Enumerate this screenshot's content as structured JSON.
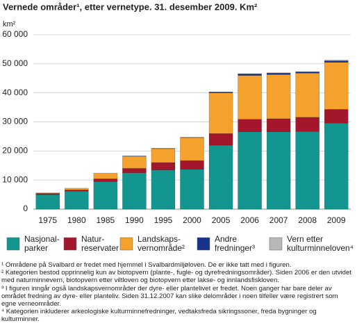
{
  "chart_data": {
    "type": "stacked-bar",
    "title": "Vernede områder¹, etter vernetype. 31. desember 2009. Km²",
    "unit_label": "km²",
    "categories": [
      "1975",
      "1980",
      "1985",
      "1990",
      "1995",
      "2000",
      "2005",
      "2006",
      "2007",
      "2008",
      "2009"
    ],
    "series": [
      {
        "name": "Nasjonal-\nparker",
        "color": "#12968f",
        "values": [
          5000,
          6200,
          9500,
          12500,
          13500,
          13700,
          22000,
          26600,
          26600,
          26700,
          29600
        ]
      },
      {
        "name": "Natur-\nreservater",
        "color": "#a3162b",
        "values": [
          400,
          400,
          900,
          1500,
          2500,
          3000,
          4000,
          4300,
          4500,
          4900,
          4700
        ]
      },
      {
        "name": "Landskaps-\nvernområde²",
        "color": "#f4a12d",
        "values": [
          200,
          600,
          2000,
          4200,
          4800,
          7900,
          14000,
          15100,
          15200,
          15200,
          16200
        ]
      },
      {
        "name": "Andre\nfredninger³",
        "color": "#17338a",
        "values": [
          0,
          0,
          0,
          100,
          100,
          100,
          300,
          500,
          500,
          400,
          500
        ]
      },
      {
        "name": "Vern etter\nkulturminneloven⁴",
        "color": "#b8b8b8",
        "values": [
          0,
          0,
          0,
          0,
          0,
          0,
          0,
          100,
          100,
          100,
          300
        ]
      }
    ],
    "ylim": [
      0,
      60000
    ],
    "yticks": [
      0,
      {
        "value": 10000,
        "label": "10 000"
      },
      {
        "value": 20000,
        "label": "20 000"
      },
      {
        "value": 30000,
        "label": "30 000"
      },
      {
        "value": 40000,
        "label": "40 000"
      },
      {
        "value": 50000,
        "label": "50 000"
      },
      {
        "value": 60000,
        "label": "60 000"
      }
    ],
    "grid": true,
    "footnotes": [
      "¹ Områdene på Svalbard er fredet med hjemmel i Svalbardmiljøloven. De er ikke tatt med i figuren.",
      "² Kategorien bestod opprinnelig kun av biotopvern (plante-, fugle- og dyrefredningsområder). Siden 2006 er den utvidet med naturminnevern, biotopvern etter viltloven og biotopvern etter lakse- og innlandsfiskloven.",
      "³ I figuren inngår også landskapsvernområder der dyre- eller plantelivet er fredet. Noen ganger har bare deler av området fredning av dyre- eller planteliv. Siden 31.12.2007 kan slike delområder i noen tilfeller være registrert som egne verneområder.",
      "⁴ Kategorien inkluderer arkeologiske kulturminnefredninger, vedtaksfreda sikringssoner, freda bygninger og kulturminner."
    ]
  }
}
